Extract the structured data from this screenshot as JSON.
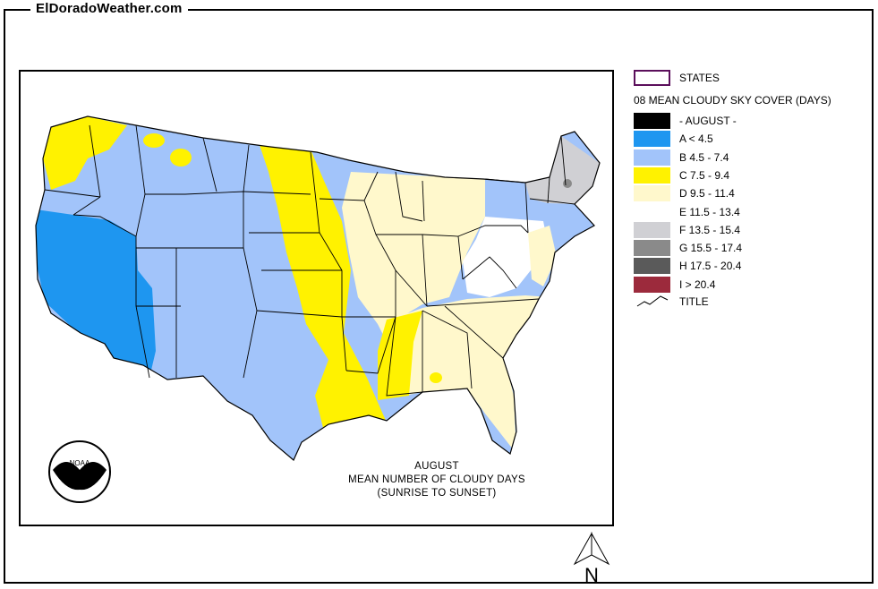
{
  "site_title": "ElDoradoWeather.com",
  "caption": {
    "line1": "AUGUST",
    "line2": "MEAN NUMBER OF CLOUDY DAYS",
    "line3": "(SUNRISE TO SUNSET)"
  },
  "logo": {
    "name": "noaa-logo",
    "text": "NOAA"
  },
  "legend": {
    "states_label": "STATES",
    "states_color": "#5b0f5b",
    "header": "08 MEAN CLOUDY SKY COVER (DAYS)",
    "items": [
      {
        "label": "- AUGUST -",
        "color": "#000000"
      },
      {
        "label": "A < 4.5",
        "color": "#1e96f0"
      },
      {
        "label": "B 4.5 - 7.4",
        "color": "#a2c4fa"
      },
      {
        "label": "C 7.5 - 9.4",
        "color": "#fff200"
      },
      {
        "label": "D 9.5 - 11.4",
        "color": "#fff8cc"
      },
      {
        "label": "E 11.5 - 13.4",
        "color": "#ffffff"
      },
      {
        "label": "F 13.5 - 15.4",
        "color": "#d0d0d4"
      },
      {
        "label": "G 15.5 - 17.4",
        "color": "#8a8a8a"
      },
      {
        "label": "H 17.5 - 20.4",
        "color": "#5a5a5a"
      },
      {
        "label": "I > 20.4",
        "color": "#9c2a3c"
      }
    ],
    "title_label": "TITLE",
    "title_icon": "polyline-icon"
  },
  "north_arrow": {
    "label": "N"
  }
}
